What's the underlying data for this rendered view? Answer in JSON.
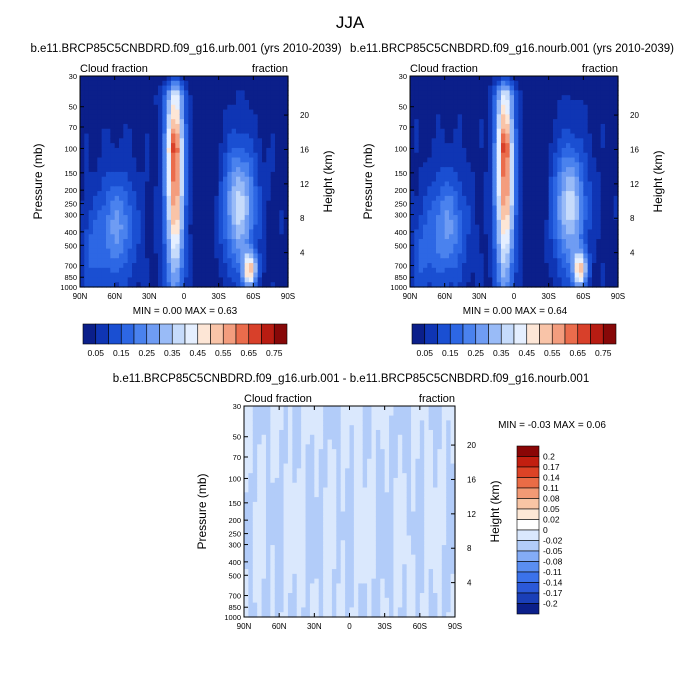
{
  "figure": {
    "title": "JJA"
  },
  "colors": {
    "abs_palette": [
      "#0b1f8a",
      "#0f35b4",
      "#1a4fd2",
      "#2d67e4",
      "#4a82ee",
      "#6f9cf3",
      "#99bbf7",
      "#c6dbfb",
      "#e5efff",
      "#fde6d6",
      "#f9c4a8",
      "#f39d7e",
      "#ea6c4c",
      "#d8402a",
      "#b81c12",
      "#870808"
    ],
    "diff_palette": [
      "#0b1f8a",
      "#1a3fb8",
      "#2b59d8",
      "#3b72ea",
      "#5a8ef2",
      "#84acf6",
      "#b2ccf9",
      "#dae8fd",
      "#ffffff",
      "#fde8d6",
      "#f8c5a5",
      "#f29a75",
      "#ea6c46",
      "#dc4326",
      "#c21f10",
      "#8a0606"
    ]
  },
  "labels": {
    "left_fraction": "Cloud fraction",
    "right_fraction": "fraction",
    "ylabel": "Pressure (mb)",
    "ylabel_right": "Height (km)"
  },
  "chart_data": [
    {
      "id": "urb",
      "type": "heatmap",
      "subtitle": "b.e11.BRCP85C5CNBDRD.f09_g16.urb.001 (yrs 2010-2039)",
      "x_ticks": [
        "90N",
        "60N",
        "30N",
        "0",
        "30S",
        "60S",
        "90S"
      ],
      "x_range": [
        90,
        -90
      ],
      "y_ticks": [
        "30",
        "50",
        "70",
        "100",
        "150",
        "200",
        "250",
        "300",
        "400",
        "500",
        "700",
        "850",
        "1000"
      ],
      "y_range": [
        30,
        1000
      ],
      "y_right_ticks": [
        "20",
        "16",
        "12",
        "8",
        "4"
      ],
      "stats_text": "MIN =   0.00   MAX =   0.63",
      "min": 0.0,
      "max": 0.63,
      "colorbar_labels": [
        "0.05",
        "0.15",
        "0.25",
        "0.35",
        "0.45",
        "0.55",
        "0.65",
        "0.75"
      ]
    },
    {
      "id": "nourb",
      "type": "heatmap",
      "subtitle": "b.e11.BRCP85C5CNBDRD.f09_g16.nourb.001 (yrs 2010-2039)",
      "x_ticks": [
        "90N",
        "60N",
        "30N",
        "0",
        "30S",
        "60S",
        "90S"
      ],
      "x_range": [
        90,
        -90
      ],
      "y_ticks": [
        "30",
        "50",
        "70",
        "100",
        "150",
        "200",
        "250",
        "300",
        "400",
        "500",
        "700",
        "850",
        "1000"
      ],
      "y_range": [
        30,
        1000
      ],
      "y_right_ticks": [
        "20",
        "16",
        "12",
        "8",
        "4"
      ],
      "stats_text": "MIN =   0.00   MAX =   0.64",
      "min": 0.0,
      "max": 0.64,
      "colorbar_labels": [
        "0.05",
        "0.15",
        "0.25",
        "0.35",
        "0.45",
        "0.55",
        "0.65",
        "0.75"
      ]
    },
    {
      "id": "diff",
      "type": "heatmap",
      "subtitle": "b.e11.BRCP85C5CNBDRD.f09_g16.urb.001 - b.e11.BRCP85C5CNBDRD.f09_g16.nourb.001",
      "x_ticks": [
        "90N",
        "60N",
        "30N",
        "0",
        "30S",
        "60S",
        "90S"
      ],
      "x_range": [
        90,
        -90
      ],
      "y_ticks": [
        "30",
        "50",
        "70",
        "100",
        "150",
        "200",
        "250",
        "300",
        "400",
        "500",
        "700",
        "850",
        "1000"
      ],
      "y_range": [
        30,
        1000
      ],
      "y_right_ticks": [
        "20",
        "16",
        "12",
        "8",
        "4"
      ],
      "stats_text": "MIN =  -0.03   MAX =   0.06",
      "min": -0.03,
      "max": 0.06,
      "colorbar_labels": [
        "0.2",
        "0.17",
        "0.14",
        "0.11",
        "0.08",
        "0.05",
        "0.02",
        "0",
        "-0.02",
        "-0.05",
        "-0.08",
        "-0.11",
        "-0.14",
        "-0.17",
        "-0.2"
      ]
    }
  ]
}
